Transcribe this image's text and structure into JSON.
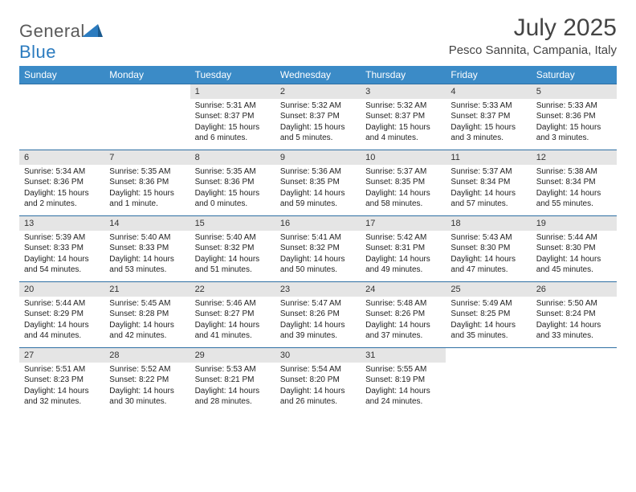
{
  "brand": {
    "part1": "General",
    "part2": "Blue"
  },
  "title": "July 2025",
  "location": "Pesco Sannita, Campania, Italy",
  "colors": {
    "header_bg": "#3b8bc7",
    "header_border": "#2e6fa3",
    "daynum_bg": "#e5e5e5",
    "logo_gray": "#5a5a5a",
    "logo_blue": "#2b7bbf"
  },
  "week_headers": [
    "Sunday",
    "Monday",
    "Tuesday",
    "Wednesday",
    "Thursday",
    "Friday",
    "Saturday"
  ],
  "weeks": [
    [
      null,
      null,
      {
        "n": "1",
        "sr": "5:31 AM",
        "ss": "8:37 PM",
        "dl": "15 hours and 6 minutes."
      },
      {
        "n": "2",
        "sr": "5:32 AM",
        "ss": "8:37 PM",
        "dl": "15 hours and 5 minutes."
      },
      {
        "n": "3",
        "sr": "5:32 AM",
        "ss": "8:37 PM",
        "dl": "15 hours and 4 minutes."
      },
      {
        "n": "4",
        "sr": "5:33 AM",
        "ss": "8:37 PM",
        "dl": "15 hours and 3 minutes."
      },
      {
        "n": "5",
        "sr": "5:33 AM",
        "ss": "8:36 PM",
        "dl": "15 hours and 3 minutes."
      }
    ],
    [
      {
        "n": "6",
        "sr": "5:34 AM",
        "ss": "8:36 PM",
        "dl": "15 hours and 2 minutes."
      },
      {
        "n": "7",
        "sr": "5:35 AM",
        "ss": "8:36 PM",
        "dl": "15 hours and 1 minute."
      },
      {
        "n": "8",
        "sr": "5:35 AM",
        "ss": "8:36 PM",
        "dl": "15 hours and 0 minutes."
      },
      {
        "n": "9",
        "sr": "5:36 AM",
        "ss": "8:35 PM",
        "dl": "14 hours and 59 minutes."
      },
      {
        "n": "10",
        "sr": "5:37 AM",
        "ss": "8:35 PM",
        "dl": "14 hours and 58 minutes."
      },
      {
        "n": "11",
        "sr": "5:37 AM",
        "ss": "8:34 PM",
        "dl": "14 hours and 57 minutes."
      },
      {
        "n": "12",
        "sr": "5:38 AM",
        "ss": "8:34 PM",
        "dl": "14 hours and 55 minutes."
      }
    ],
    [
      {
        "n": "13",
        "sr": "5:39 AM",
        "ss": "8:33 PM",
        "dl": "14 hours and 54 minutes."
      },
      {
        "n": "14",
        "sr": "5:40 AM",
        "ss": "8:33 PM",
        "dl": "14 hours and 53 minutes."
      },
      {
        "n": "15",
        "sr": "5:40 AM",
        "ss": "8:32 PM",
        "dl": "14 hours and 51 minutes."
      },
      {
        "n": "16",
        "sr": "5:41 AM",
        "ss": "8:32 PM",
        "dl": "14 hours and 50 minutes."
      },
      {
        "n": "17",
        "sr": "5:42 AM",
        "ss": "8:31 PM",
        "dl": "14 hours and 49 minutes."
      },
      {
        "n": "18",
        "sr": "5:43 AM",
        "ss": "8:30 PM",
        "dl": "14 hours and 47 minutes."
      },
      {
        "n": "19",
        "sr": "5:44 AM",
        "ss": "8:30 PM",
        "dl": "14 hours and 45 minutes."
      }
    ],
    [
      {
        "n": "20",
        "sr": "5:44 AM",
        "ss": "8:29 PM",
        "dl": "14 hours and 44 minutes."
      },
      {
        "n": "21",
        "sr": "5:45 AM",
        "ss": "8:28 PM",
        "dl": "14 hours and 42 minutes."
      },
      {
        "n": "22",
        "sr": "5:46 AM",
        "ss": "8:27 PM",
        "dl": "14 hours and 41 minutes."
      },
      {
        "n": "23",
        "sr": "5:47 AM",
        "ss": "8:26 PM",
        "dl": "14 hours and 39 minutes."
      },
      {
        "n": "24",
        "sr": "5:48 AM",
        "ss": "8:26 PM",
        "dl": "14 hours and 37 minutes."
      },
      {
        "n": "25",
        "sr": "5:49 AM",
        "ss": "8:25 PM",
        "dl": "14 hours and 35 minutes."
      },
      {
        "n": "26",
        "sr": "5:50 AM",
        "ss": "8:24 PM",
        "dl": "14 hours and 33 minutes."
      }
    ],
    [
      {
        "n": "27",
        "sr": "5:51 AM",
        "ss": "8:23 PM",
        "dl": "14 hours and 32 minutes."
      },
      {
        "n": "28",
        "sr": "5:52 AM",
        "ss": "8:22 PM",
        "dl": "14 hours and 30 minutes."
      },
      {
        "n": "29",
        "sr": "5:53 AM",
        "ss": "8:21 PM",
        "dl": "14 hours and 28 minutes."
      },
      {
        "n": "30",
        "sr": "5:54 AM",
        "ss": "8:20 PM",
        "dl": "14 hours and 26 minutes."
      },
      {
        "n": "31",
        "sr": "5:55 AM",
        "ss": "8:19 PM",
        "dl": "14 hours and 24 minutes."
      },
      null,
      null
    ]
  ],
  "labels": {
    "sunrise": "Sunrise: ",
    "sunset": "Sunset: ",
    "daylight": "Daylight: "
  }
}
